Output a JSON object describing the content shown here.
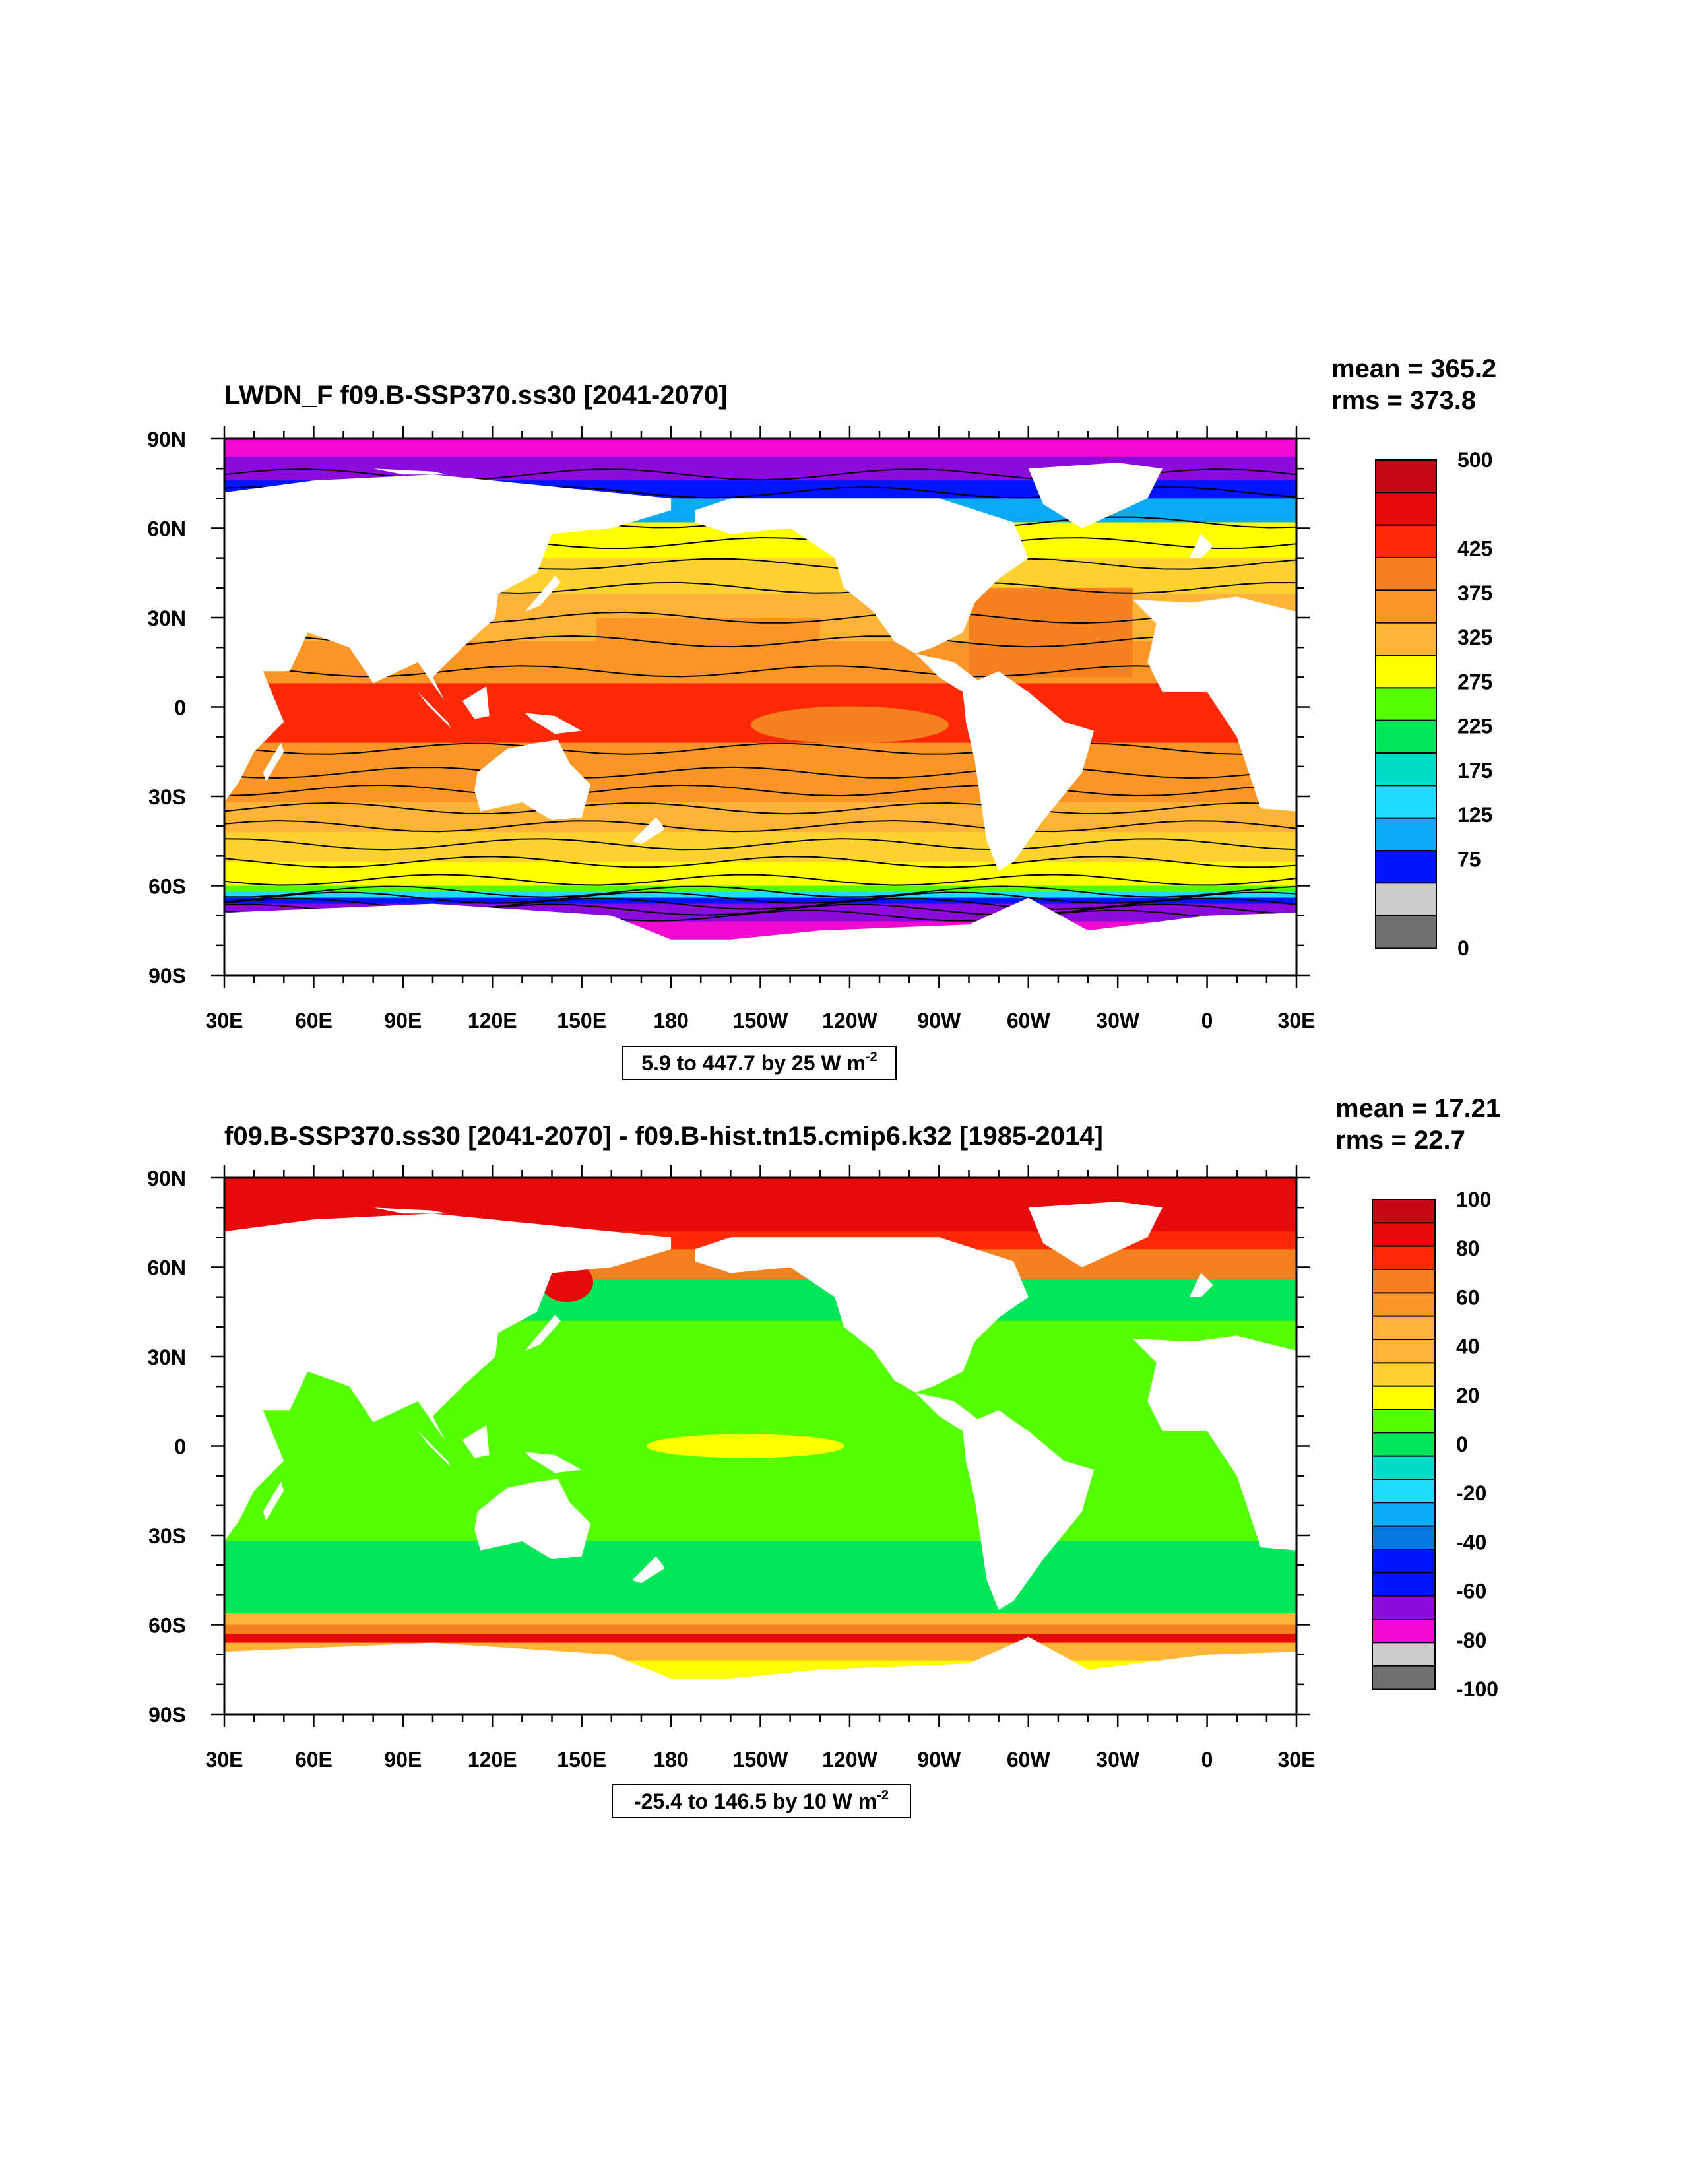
{
  "panels": [
    {
      "id": "top",
      "title": "LWDN_F f09.B-SSP370.ss30 [2041-2070]",
      "stats": {
        "mean": "mean = 365.2",
        "rms": "rms = 373.8"
      },
      "range_label": "5.9 to 447.7 by 25  W m",
      "range_exp": "-2",
      "colorbar_labels": [
        "500",
        "",
        "425",
        "375",
        "325",
        "275",
        "225",
        "175",
        "125",
        "75",
        "",
        "0"
      ],
      "has_contours": true
    },
    {
      "id": "bottom",
      "title": "f09.B-SSP370.ss30 [2041-2070] - f09.B-hist.tn15.cmip6.k32 [1985-2014]",
      "stats": {
        "mean": "mean = 17.21",
        "rms": "rms = 22.7"
      },
      "range_label": "-25.4 to 146.5 by 10  W m",
      "range_exp": "-2",
      "colorbar_labels": [
        "100",
        "80",
        "60",
        "40",
        "20",
        "0",
        "-20",
        "-40",
        "-60",
        "-80",
        "-100"
      ],
      "has_contours": false
    }
  ],
  "axes": {
    "lat_labels": [
      "90N",
      "60N",
      "30N",
      "0",
      "30S",
      "60S",
      "90S"
    ],
    "lon_labels": [
      "30E",
      "60E",
      "90E",
      "120E",
      "150E",
      "180",
      "150W",
      "120W",
      "90W",
      "60W",
      "30W",
      "0",
      "30E"
    ]
  },
  "colormap": [
    "#c40a14",
    "#e60a0a",
    "#ff2a05",
    "#f5821e",
    "#fa9628",
    "#ffb437",
    "#ffd232",
    "#ffff00",
    "#55ff00",
    "#00e65a",
    "#00dcc8",
    "#1edcff",
    "#0aaaf5",
    "#0a78e1",
    "#0014ff",
    "#8c0adc",
    "#f00ad2",
    "#cccccc",
    "#707070"
  ],
  "map_colors": {
    "land": "#ffffff"
  }
}
